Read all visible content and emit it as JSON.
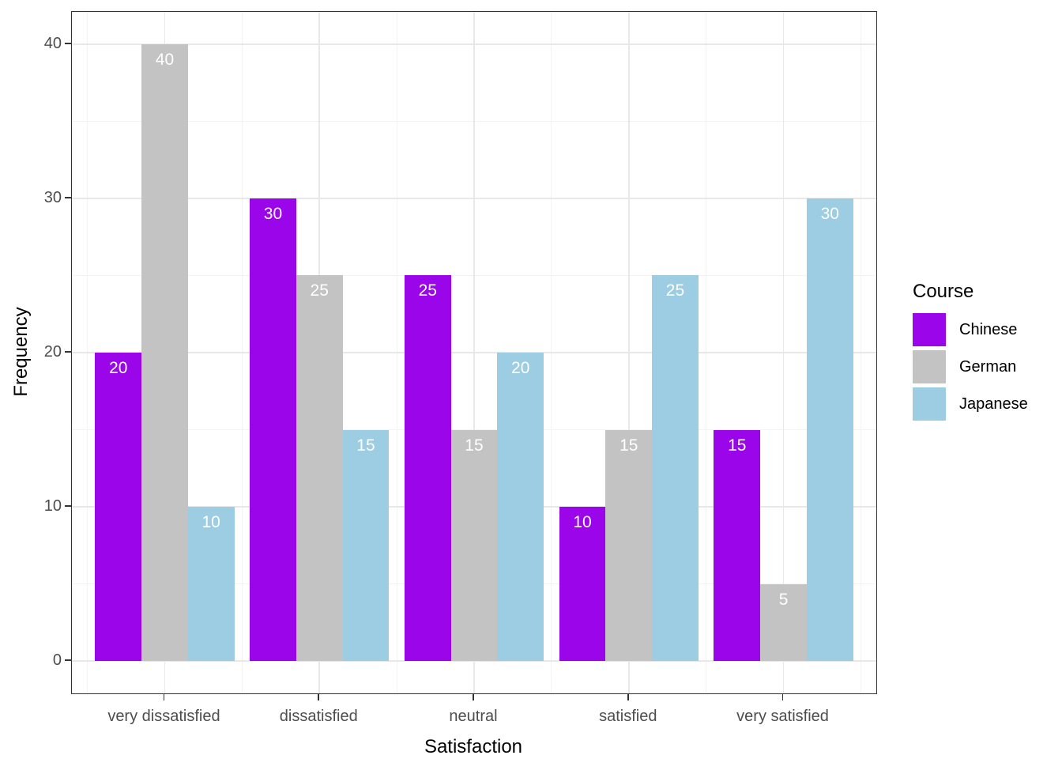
{
  "chart_data": {
    "type": "bar",
    "mode": "grouped",
    "title": "",
    "xlabel": "Satisfaction",
    "ylabel": "Frequency",
    "categories": [
      "very dissatisfied",
      "dissatisfied",
      "neutral",
      "satisfied",
      "very satisfied"
    ],
    "series": [
      {
        "name": "Chinese",
        "color": "#9b05e9",
        "values": [
          20,
          30,
          25,
          10,
          15
        ]
      },
      {
        "name": "German",
        "color": "#c3c3c3",
        "values": [
          40,
          25,
          15,
          15,
          5
        ]
      },
      {
        "name": "Japanese",
        "color": "#9dcde2",
        "values": [
          10,
          15,
          20,
          25,
          30
        ]
      }
    ],
    "bar_value_labels": true,
    "bar_label_color": "#ffffff",
    "ylim": [
      0,
      40
    ],
    "y_major_ticks": [
      0,
      10,
      20,
      30,
      40
    ],
    "y_minor_gridlines": [
      5,
      15,
      25,
      35
    ],
    "grid": "major+minor",
    "legend": {
      "title": "Course",
      "position": "right"
    }
  },
  "colors": {
    "background": "#ffffff",
    "panel_border": "#333333",
    "grid_major": "#e8e8e8",
    "grid_minor": "#f3f3f3",
    "tick": "#333333",
    "tick_label": "#4d4d4d",
    "axis_title": "#000000",
    "legend_text": "#000000"
  }
}
